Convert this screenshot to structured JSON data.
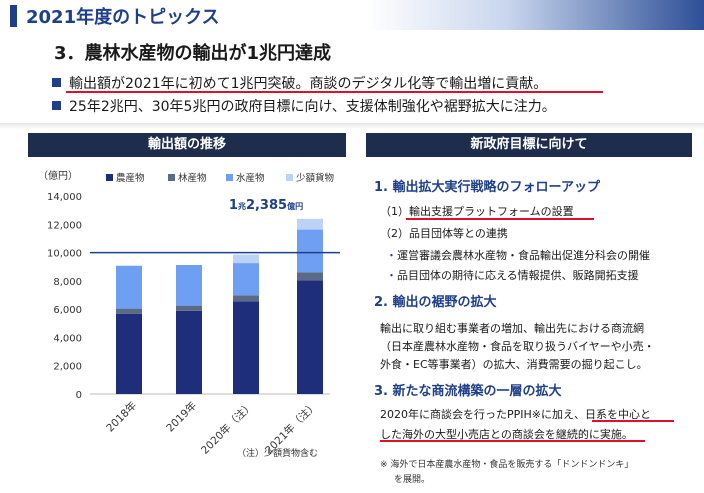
{
  "header": {
    "title": "2021年度のトピックス"
  },
  "subtitle": "3．農林水産物の輸出が1兆円達成",
  "bullets": [
    "輸出額が2021年に初めて1兆円突破。商談のデジタル化等で輸出増に貢献。",
    "25年2兆円、30年5兆円の政府目標に向け、支援体制強化や裾野拡大に注力。"
  ],
  "left_panel": {
    "title": "輸出額の推移",
    "unit_label": "（億円）",
    "callout": {
      "big": "1",
      "small1": "兆",
      "big2": "2,385",
      "small2": "億円"
    },
    "footnote": "（注）少額貨物含む"
  },
  "chart_data": {
    "type": "bar",
    "stacked": true,
    "categories": [
      "2018年",
      "2019年",
      "2020年（注）",
      "2021年（注）"
    ],
    "series": [
      {
        "name": "農産物",
        "color": "#1f2e7a",
        "values": [
          5661,
          5878,
          6552,
          8041
        ]
      },
      {
        "name": "林産物",
        "color": "#5a6a87",
        "values": [
          376,
          370,
          429,
          570
        ]
      },
      {
        "name": "水産物",
        "color": "#6e9ff2",
        "values": [
          3031,
          2873,
          2276,
          3015
        ]
      },
      {
        "name": "少額貨物",
        "color": "#bcd3f7",
        "values": [
          0,
          0,
          603,
          759
        ]
      }
    ],
    "ylim": [
      0,
      14000
    ],
    "yticks": [
      "0",
      "2,000",
      "4,000",
      "6,000",
      "8,000",
      "10,000",
      "12,000",
      "14,000"
    ],
    "reference_line": 10000,
    "legend_position": "top",
    "grid": false
  },
  "right_panel": {
    "title": "新政府目標に向けて",
    "s1": {
      "heading": "1. 輸出拡大実行戦略のフォローアップ",
      "item1": "（1）輸出支援プラットフォームの設置",
      "item2": "（2）品目団体等との連携",
      "dot1": "運営審議会農林水産物・食品輸出促進分科会の開催",
      "dot2": "品目団体の期待に応える情報提供、販路開拓支援"
    },
    "s2": {
      "heading": "2. 輸出の裾野の拡大",
      "line1": "輸出に取り組む事業者の増加、輸出先における商流網",
      "line2": "（日本産農林水産物・食品を取り扱うバイヤーや小売・",
      "line3": "外食・EC等事業者）の拡大、消費需要の掘り起こし。"
    },
    "s3": {
      "heading": "3. 新たな商流構築の一層の拡大",
      "line1": "2020年に商談会を行ったPPIH※に加え、日系を中心と",
      "line2": "した海外の大型小売店との商談会を継続的に実施。"
    },
    "note1": "※ 海外で日本産農水産物・食品を販売する「ドンドンドンキ」",
    "note2": "を展開。"
  },
  "colors": {
    "brand": "#1f3f8a",
    "underline": "#e0102c",
    "panel_header": "#1f2d4d"
  }
}
